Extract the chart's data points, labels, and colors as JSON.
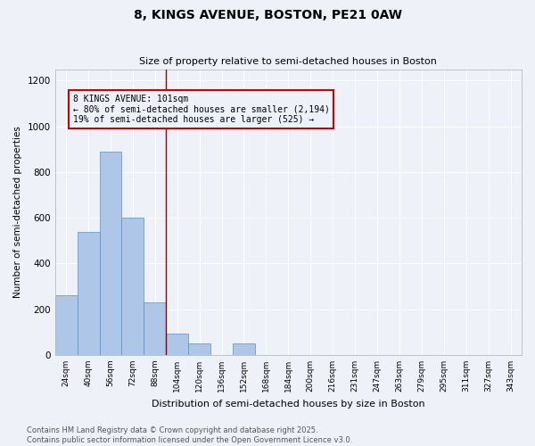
{
  "title": "8, KINGS AVENUE, BOSTON, PE21 0AW",
  "subtitle": "Size of property relative to semi-detached houses in Boston",
  "xlabel": "Distribution of semi-detached houses by size in Boston",
  "ylabel": "Number of semi-detached properties",
  "bar_labels": [
    "24sqm",
    "40sqm",
    "56sqm",
    "72sqm",
    "88sqm",
    "104sqm",
    "120sqm",
    "136sqm",
    "152sqm",
    "168sqm",
    "184sqm",
    "200sqm",
    "216sqm",
    "231sqm",
    "247sqm",
    "263sqm",
    "279sqm",
    "295sqm",
    "311sqm",
    "327sqm",
    "343sqm"
  ],
  "bar_values": [
    260,
    540,
    890,
    600,
    230,
    95,
    50,
    0,
    50,
    0,
    0,
    0,
    0,
    0,
    0,
    0,
    0,
    0,
    0,
    0,
    0
  ],
  "bar_color": "#aec6e8",
  "bar_edge_color": "#5a8fc2",
  "vline_x_index": 4.5,
  "vline_color": "#8b0000",
  "annotation_line1": "8 KINGS AVENUE: 101sqm",
  "annotation_line2": "← 80% of semi-detached houses are smaller (2,194)",
  "annotation_line3": "19% of semi-detached houses are larger (525) →",
  "annotation_box_color": "#cc0000",
  "ylim": [
    0,
    1250
  ],
  "yticks": [
    0,
    200,
    400,
    600,
    800,
    1000,
    1200
  ],
  "background_color": "#eef2f8",
  "grid_color": "#ffffff",
  "footer_line1": "Contains HM Land Registry data © Crown copyright and database right 2025.",
  "footer_line2": "Contains public sector information licensed under the Open Government Licence v3.0."
}
